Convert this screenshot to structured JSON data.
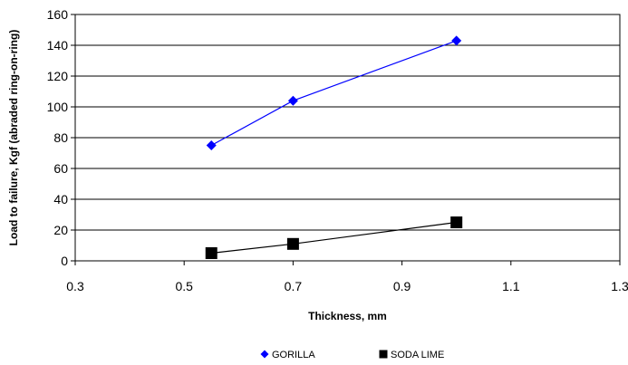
{
  "chart_data": {
    "type": "scatter",
    "xlabel": "Thickness, mm",
    "ylabel": "Load to failure, Kgf (abraded ring-on-ring)",
    "xlim": [
      0.3,
      1.3
    ],
    "ylim": [
      0,
      160
    ],
    "x_ticks": [
      "0.3",
      "0.5",
      "0.7",
      "0.9",
      "1.1",
      "1.3"
    ],
    "y_ticks": [
      "0",
      "20",
      "40",
      "60",
      "80",
      "100",
      "120",
      "140",
      "160"
    ],
    "grid": "horizontal",
    "legend_position": "bottom",
    "series": [
      {
        "name": "GORILLA",
        "color": "#0000ff",
        "marker": "diamond",
        "points": [
          {
            "x": 0.55,
            "y": 75
          },
          {
            "x": 0.7,
            "y": 104
          },
          {
            "x": 1.0,
            "y": 143
          }
        ]
      },
      {
        "name": "SODA LIME",
        "color": "#000000",
        "marker": "square",
        "points": [
          {
            "x": 0.55,
            "y": 5
          },
          {
            "x": 0.7,
            "y": 11
          },
          {
            "x": 1.0,
            "y": 25
          }
        ]
      }
    ]
  }
}
